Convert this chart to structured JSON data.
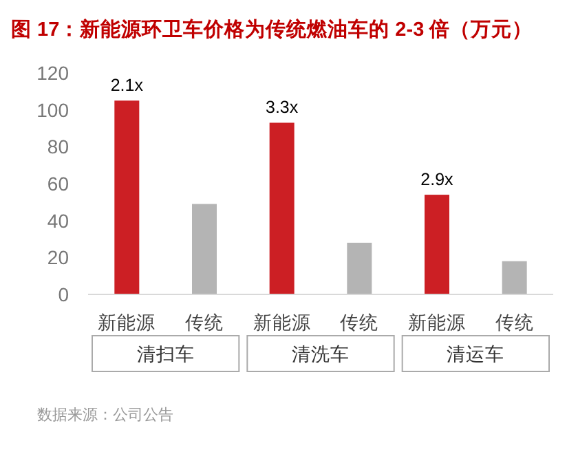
{
  "chart_data": {
    "type": "bar",
    "title": "图 17：新能源环卫车价格为传统燃油车的 2-3 倍（万元）",
    "categories": [
      "新能源",
      "传统",
      "新能源",
      "传统",
      "新能源",
      "传统"
    ],
    "values": [
      105,
      49,
      93,
      28,
      54,
      18
    ],
    "colors": [
      "#cc1f24",
      "#b4b4b4",
      "#cc1f24",
      "#b4b4b4",
      "#cc1f24",
      "#b4b4b4"
    ],
    "ylim": [
      0,
      120
    ],
    "yticks": [
      0,
      20,
      40,
      60,
      80,
      100,
      120
    ],
    "grid": false,
    "annotations": [
      "2.1x",
      "3.3x",
      "2.9x",
      "清扫车",
      "清洗车",
      "清运车",
      "数据来源：公司公告"
    ]
  }
}
